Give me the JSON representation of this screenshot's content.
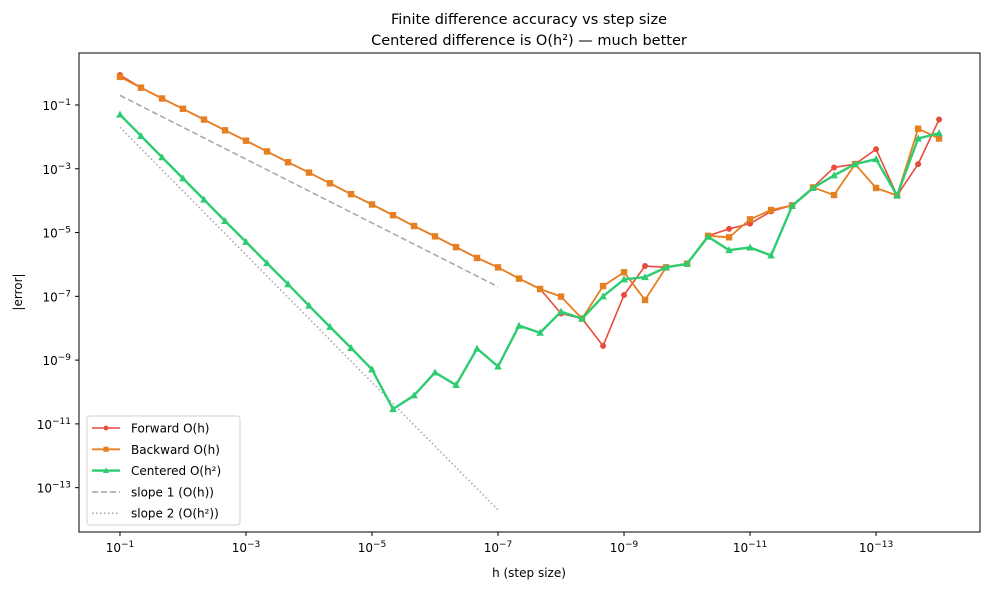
{
  "chart_data": {
    "type": "line",
    "title": "Finite difference accuracy vs step size",
    "subtitle": "Centered difference is O(h²) — much better",
    "xlabel": "h (step size)",
    "ylabel": "|error|",
    "x_scale": "log",
    "y_scale": "log",
    "x_reversed": true,
    "xlim": [
      0.447,
      2.24e-15
    ],
    "ylim": [
      4.07e-15,
      4.27
    ],
    "grid": false,
    "legend_position": "lower-left",
    "x_ticks": [
      {
        "value": 0.1,
        "base": "10",
        "exp": "−1"
      },
      {
        "value": 0.001,
        "base": "10",
        "exp": "−3"
      },
      {
        "value": 1e-05,
        "base": "10",
        "exp": "−5"
      },
      {
        "value": 1e-07,
        "base": "10",
        "exp": "−7"
      },
      {
        "value": 1e-09,
        "base": "10",
        "exp": "−9"
      },
      {
        "value": 1e-11,
        "base": "10",
        "exp": "−11"
      },
      {
        "value": 1e-13,
        "base": "10",
        "exp": "−13"
      }
    ],
    "y_ticks": [
      {
        "value": 0.1,
        "base": "10",
        "exp": "−1"
      },
      {
        "value": 0.001,
        "base": "10",
        "exp": "−3"
      },
      {
        "value": 1e-05,
        "base": "10",
        "exp": "−5"
      },
      {
        "value": 1e-07,
        "base": "10",
        "exp": "−7"
      },
      {
        "value": 1e-09,
        "base": "10",
        "exp": "−9"
      },
      {
        "value": 1e-11,
        "base": "10",
        "exp": "−11"
      },
      {
        "value": 1e-13,
        "base": "10",
        "exp": "−13"
      }
    ],
    "x": [
      0.1,
      0.0464,
      0.0215,
      0.01,
      0.00464,
      0.00215,
      0.001,
      0.000464,
      0.000215,
      0.0001,
      4.64e-05,
      2.15e-05,
      1e-05,
      4.64e-06,
      2.15e-06,
      1e-06,
      4.64e-07,
      2.15e-07,
      1e-07,
      4.64e-08,
      2.15e-08,
      1e-08,
      4.64e-09,
      2.15e-09,
      1e-09,
      4.64e-10,
      2.15e-10,
      1e-10,
      4.64e-11,
      2.15e-11,
      1e-11,
      4.64e-12,
      2.15e-12,
      1e-12,
      4.64e-13,
      2.15e-13,
      1e-13,
      4.64e-14,
      2.15e-14,
      1e-14
    ],
    "series": [
      {
        "name": "Forward  O(h)",
        "color": "#e74c3c",
        "marker": "circle",
        "line": "solid",
        "values": [
          0.87,
          0.35,
          0.16,
          0.076,
          0.035,
          0.016,
          0.0076,
          0.0035,
          0.0016,
          0.00076,
          0.00035,
          0.00016,
          7.6e-05,
          3.5e-05,
          1.6e-05,
          7.6e-06,
          3.5e-06,
          1.6e-06,
          8.1e-07,
          3.6e-07,
          1.7e-07,
          2.9e-08,
          2e-08,
          2.8e-09,
          1.1e-07,
          8.9e-07,
          8.1e-07,
          1.05e-06,
          7.9e-06,
          1.3e-05,
          1.9e-05,
          4.6e-05,
          7.1e-05,
          0.00026,
          0.0011,
          0.0014,
          0.0041,
          0.000145,
          0.0014,
          0.035
        ]
      },
      {
        "name": "Backward O(h)",
        "color": "#e67e22",
        "marker": "square",
        "line": "solid",
        "values": [
          0.76,
          0.35,
          0.16,
          0.076,
          0.035,
          0.016,
          0.0076,
          0.0035,
          0.0016,
          0.00076,
          0.00035,
          0.00016,
          7.6e-05,
          3.5e-05,
          1.6e-05,
          7.6e-06,
          3.5e-06,
          1.6e-06,
          8.1e-07,
          3.6e-07,
          1.7e-07,
          9.8e-08,
          2e-08,
          2.1e-07,
          5.7e-07,
          7.7e-08,
          8.1e-07,
          1.05e-06,
          7.9e-06,
          7.1e-06,
          2.6e-05,
          5.1e-05,
          7.1e-05,
          0.00026,
          0.00015,
          0.0014,
          0.00025,
          0.000145,
          0.018,
          0.0089
        ]
      },
      {
        "name": "Centered O(h²)",
        "color": "#2ecc71",
        "marker": "triangle",
        "line": "solid",
        "values": [
          0.05,
          0.0107,
          0.0023,
          0.0005,
          0.000108,
          2.3e-05,
          5.1e-06,
          1.1e-06,
          2.4e-07,
          5.1e-08,
          1.1e-08,
          2.4e-09,
          5.1e-10,
          2.9e-11,
          7.8e-11,
          4.1e-10,
          1.65e-10,
          2.3e-09,
          6.3e-10,
          1.2e-08,
          7.2e-09,
          3.3e-08,
          2e-08,
          1e-07,
          3.4e-07,
          4e-07,
          8.1e-07,
          1.05e-06,
          7.4e-06,
          2.8e-06,
          3.4e-06,
          1.9e-06,
          6.8e-05,
          0.00025,
          0.00062,
          0.0014,
          0.002,
          0.000145,
          0.0089,
          0.013
        ]
      }
    ],
    "reference_lines": [
      {
        "name": "slope 1 (O(h))",
        "color": "#aaaaaa",
        "line": "dashed",
        "x": [
          0.1,
          1e-07
        ],
        "y": [
          0.2,
          2e-07
        ]
      },
      {
        "name": "slope 2 (O(h²))",
        "color": "#aaaaaa",
        "line": "dotted",
        "x": [
          0.1,
          1e-07
        ],
        "y": [
          0.02,
          2e-14
        ]
      }
    ]
  }
}
